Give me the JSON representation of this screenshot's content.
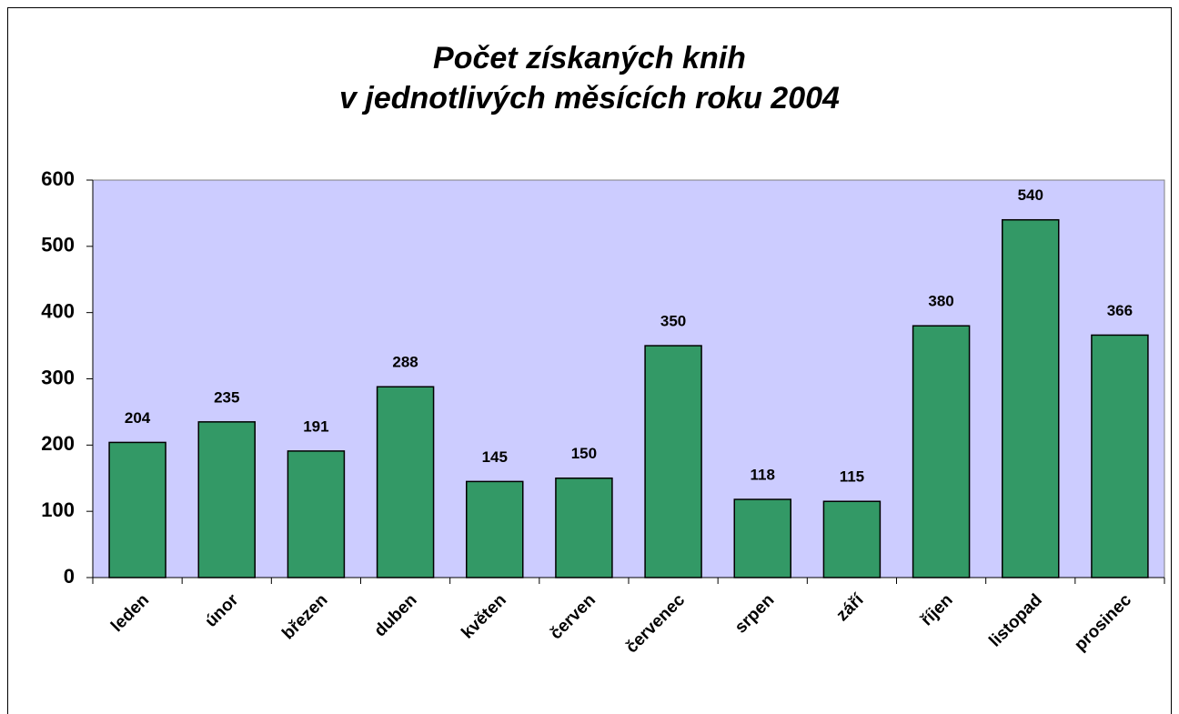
{
  "chart_data": {
    "type": "bar",
    "title": [
      "Počet získaných knih",
      "v jednotlivých měsících roku 2004"
    ],
    "categories": [
      "leden",
      "únor",
      "březen",
      "duben",
      "květen",
      "červen",
      "červenec",
      "srpen",
      "září",
      "říjen",
      "listopad",
      "prosinec"
    ],
    "values": [
      204,
      235,
      191,
      288,
      145,
      150,
      350,
      118,
      115,
      380,
      540,
      366
    ],
    "color": "#339966",
    "plot_background": "#ccccff",
    "ylim": [
      0,
      600
    ],
    "yticks": [
      0,
      100,
      200,
      300,
      400,
      500,
      600
    ],
    "grid": false
  }
}
